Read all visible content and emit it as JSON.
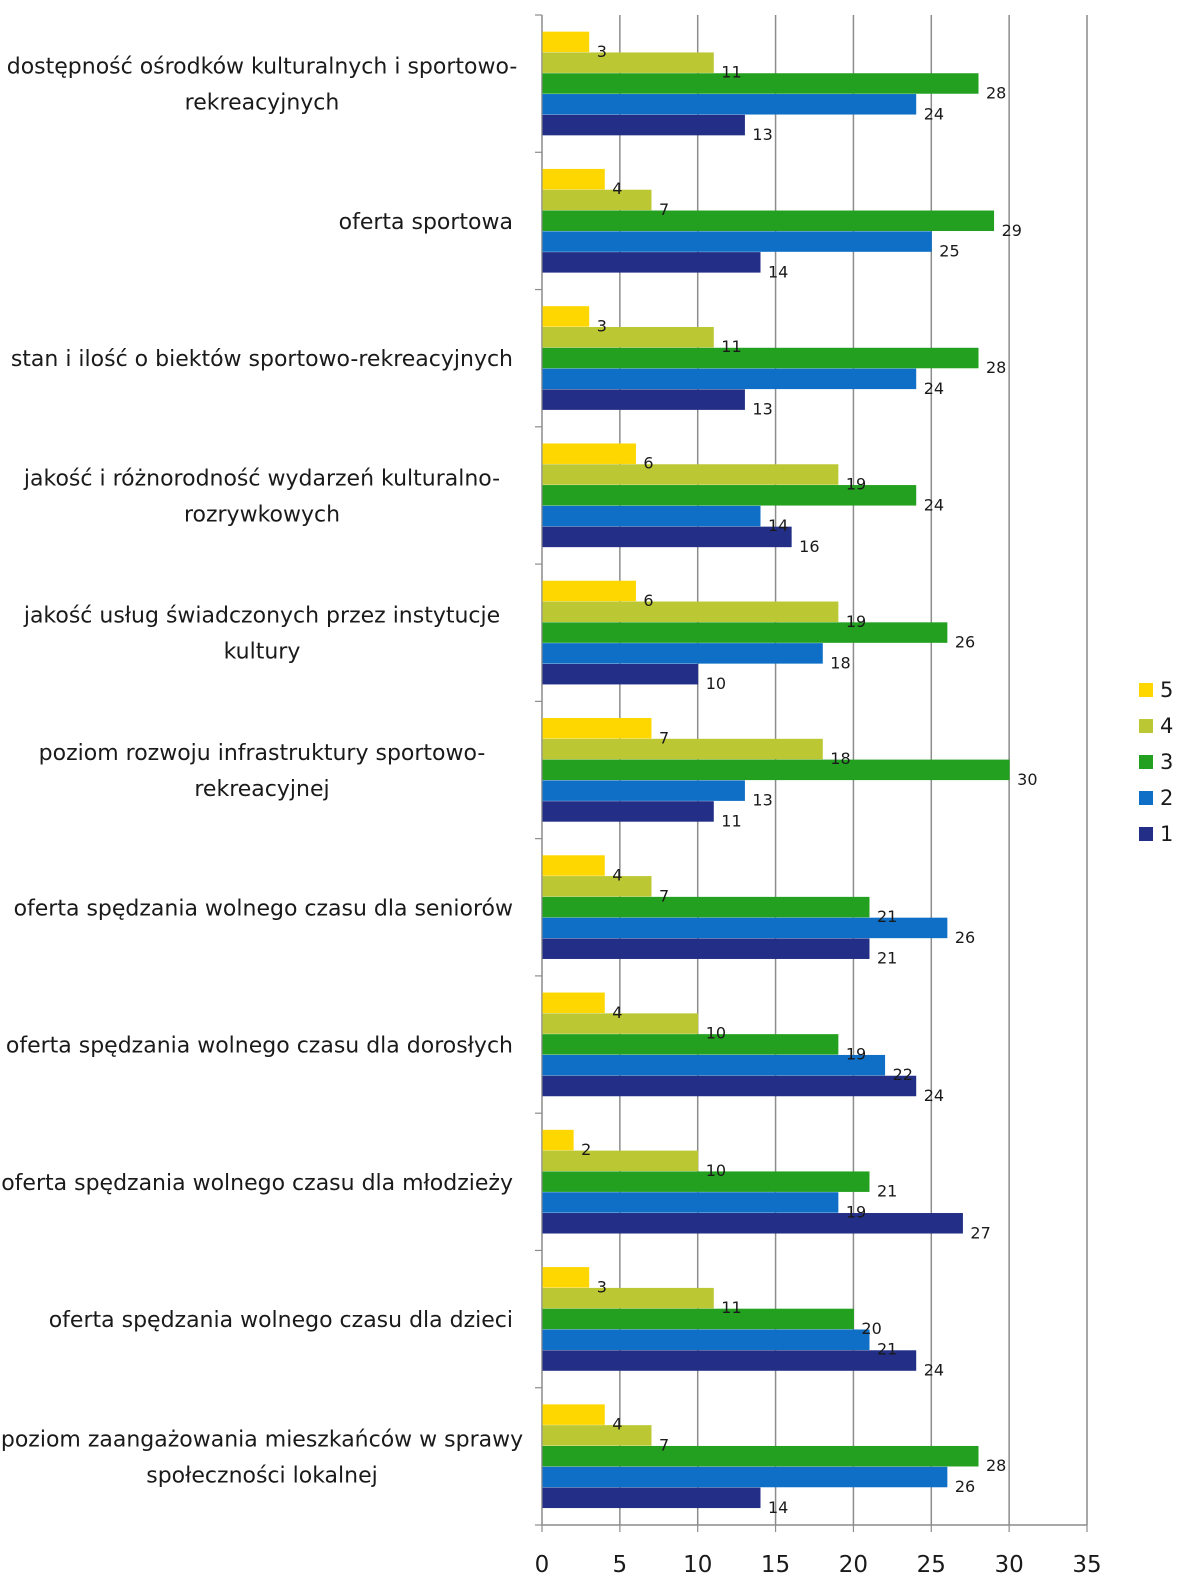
{
  "chart_data": {
    "type": "bar",
    "orientation": "horizontal",
    "categories": [
      "dostępność ośrodków kulturalnych i sportowo-rekreacyjnych",
      "oferta sportowa",
      "stan i ilość o biektów sportowo-rekreacyjnych",
      "jakość i różnorodność wydarzeń kulturalno-rozrywkowych",
      "jakość usług świadczonych przez instytucje kultury",
      "poziom rozwoju infrastruktury sportowo-rekreacyjnej",
      "oferta spędzania wolnego czasu dla seniorów",
      "oferta spędzania wolnego czasu dla dorosłych",
      "oferta spędzania wolnego czasu dla młodzieży",
      "oferta spędzania wolnego czasu dla dzieci",
      "poziom zaangażowania mieszkańców w sprawy społeczności lokalnej"
    ],
    "category_label_lines": [
      [
        "dostępność ośrodków kulturalnych i sportowo-",
        "rekreacyjnych"
      ],
      [
        "oferta sportowa"
      ],
      [
        "stan i ilość o biektów sportowo-rekreacyjnych"
      ],
      [
        "jakość i różnorodność wydarzeń kulturalno-",
        "rozrywkowych"
      ],
      [
        "jakość usług świadczonych przez instytucje",
        "kultury"
      ],
      [
        "poziom rozwoju infrastruktury sportowo-",
        "rekreacyjnej"
      ],
      [
        "oferta spędzania wolnego czasu dla seniorów"
      ],
      [
        "oferta spędzania wolnego czasu dla dorosłych"
      ],
      [
        "oferta spędzania wolnego czasu dla młodzieży"
      ],
      [
        "oferta spędzania wolnego czasu dla dzieci"
      ],
      [
        "poziom zaangażowania mieszkańców w sprawy",
        "społeczności lokalnej"
      ]
    ],
    "series": [
      {
        "name": "5",
        "color": "#ffd700",
        "values": [
          3,
          4,
          3,
          6,
          6,
          7,
          4,
          4,
          2,
          3,
          4
        ]
      },
      {
        "name": "4",
        "color": "#bcc833",
        "values": [
          11,
          7,
          11,
          19,
          19,
          18,
          7,
          10,
          10,
          11,
          7
        ]
      },
      {
        "name": "3",
        "color": "#24a021",
        "values": [
          28,
          29,
          28,
          24,
          26,
          30,
          21,
          19,
          21,
          20,
          28
        ]
      },
      {
        "name": "2",
        "color": "#0f6fc6",
        "values": [
          24,
          25,
          24,
          14,
          18,
          13,
          26,
          22,
          19,
          21,
          26
        ]
      },
      {
        "name": "1",
        "color": "#232f86",
        "values": [
          13,
          14,
          13,
          16,
          10,
          11,
          21,
          24,
          27,
          24,
          14
        ]
      }
    ],
    "legend_order": [
      "5",
      "4",
      "3",
      "2",
      "1"
    ],
    "xlim": [
      0,
      35
    ],
    "xticks": [
      0,
      5,
      10,
      15,
      20,
      25,
      30,
      35
    ],
    "grid": true,
    "legend_position": "right",
    "data_labels": true
  }
}
